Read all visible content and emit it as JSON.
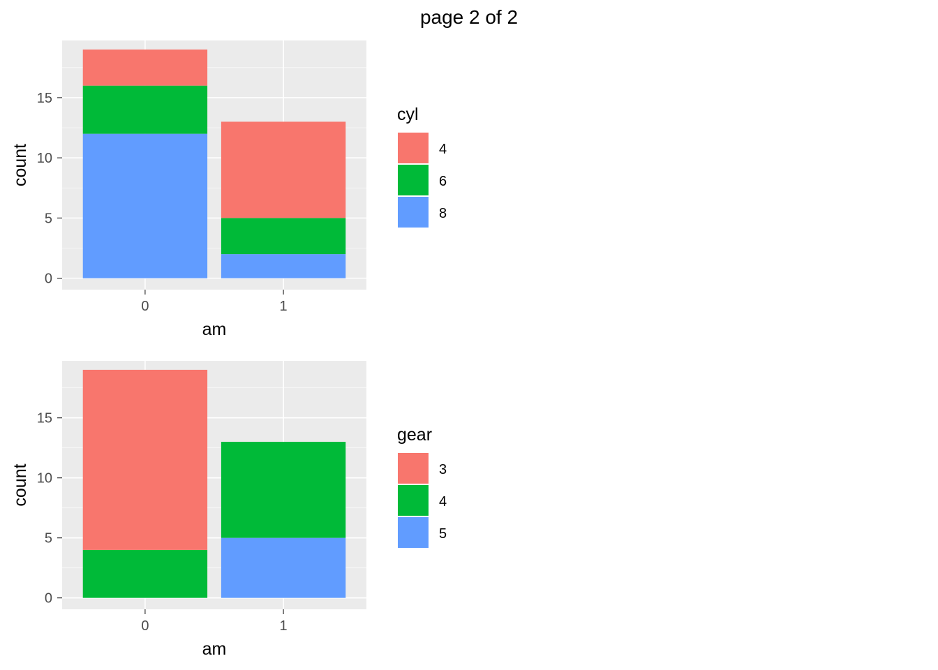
{
  "page": {
    "title": "page 2 of 2"
  },
  "chart_data": [
    {
      "type": "bar",
      "stacked": true,
      "xlabel": "am",
      "ylabel": "count",
      "categories": [
        "0",
        "1"
      ],
      "ylim": [
        0,
        19
      ],
      "y_ticks": [
        0,
        5,
        10,
        15
      ],
      "legend_title": "cyl",
      "legend_position": "right",
      "grid": true,
      "series": [
        {
          "name": "4",
          "color": "#F8766D",
          "values": [
            3,
            8
          ]
        },
        {
          "name": "6",
          "color": "#00BA38",
          "values": [
            4,
            3
          ]
        },
        {
          "name": "8",
          "color": "#619CFF",
          "values": [
            12,
            2
          ]
        }
      ]
    },
    {
      "type": "bar",
      "stacked": true,
      "xlabel": "am",
      "ylabel": "count",
      "categories": [
        "0",
        "1"
      ],
      "ylim": [
        0,
        19
      ],
      "y_ticks": [
        0,
        5,
        10,
        15
      ],
      "legend_title": "gear",
      "legend_position": "right",
      "grid": true,
      "series": [
        {
          "name": "3",
          "color": "#F8766D",
          "values": [
            15,
            0
          ]
        },
        {
          "name": "4",
          "color": "#00BA38",
          "values": [
            4,
            8
          ]
        },
        {
          "name": "5",
          "color": "#619CFF",
          "values": [
            0,
            5
          ]
        }
      ]
    }
  ]
}
